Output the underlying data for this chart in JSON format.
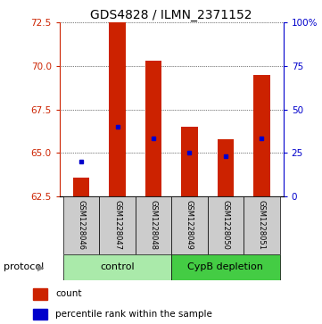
{
  "title": "GDS4828 / ILMN_2371152",
  "samples": [
    "GSM1228046",
    "GSM1228047",
    "GSM1228048",
    "GSM1228049",
    "GSM1228050",
    "GSM1228051"
  ],
  "bar_bottom": 62.5,
  "red_tops": [
    63.55,
    72.5,
    70.3,
    66.5,
    65.8,
    69.5
  ],
  "blue_markers": [
    64.5,
    66.5,
    65.85,
    65.0,
    64.82,
    65.85
  ],
  "ylim": [
    62.5,
    72.5
  ],
  "yticks_left": [
    62.5,
    65.0,
    67.5,
    70.0,
    72.5
  ],
  "yticks_right_vals": [
    0,
    25,
    50,
    75,
    100
  ],
  "bar_color": "#cc2200",
  "blue_color": "#0000cc",
  "bar_width": 0.45,
  "bg_sample_row": "#cccccc",
  "bg_group_control": "#aaeaaa",
  "bg_group_cyp": "#44cc44",
  "protocol_label": "protocol",
  "legend_red": "count",
  "legend_blue": "percentile rank within the sample",
  "title_fontsize": 10,
  "tick_fontsize": 7.5,
  "sample_fontsize": 6,
  "protocol_fontsize": 8,
  "legend_fontsize": 7.5
}
